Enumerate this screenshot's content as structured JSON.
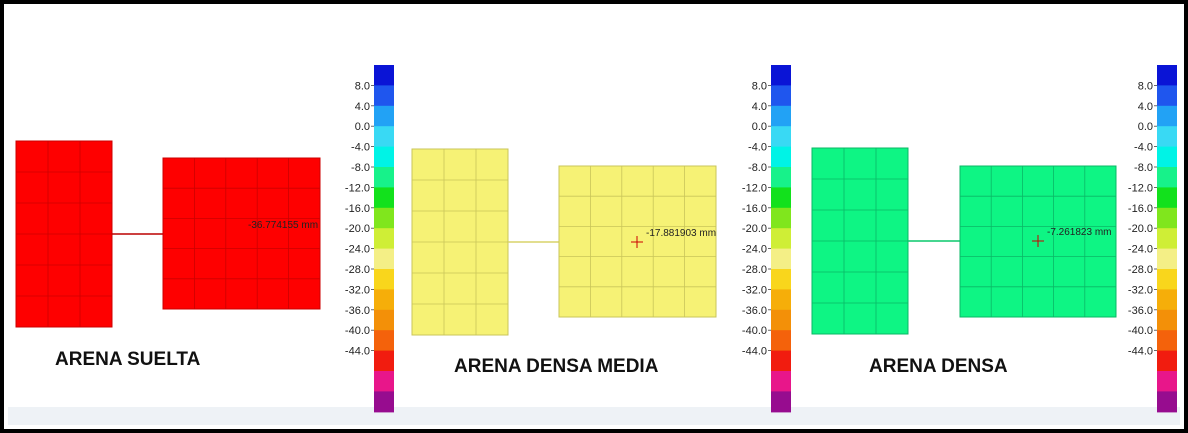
{
  "colorbar": {
    "ticks": [
      "8.0",
      "4.0",
      "0.0",
      "-4.0",
      "-8.0",
      "-12.0",
      "-16.0",
      "-20.0",
      "-24.0",
      "-28.0",
      "-32.0",
      "-36.0",
      "-40.0",
      "-44.0"
    ],
    "colors": [
      "#0a14d6",
      "#1f56ee",
      "#22a2f5",
      "#39d9f4",
      "#00f3e6",
      "#17f28a",
      "#12e11c",
      "#80e61d",
      "#cfee36",
      "#f4ef86",
      "#f9d61c",
      "#f6ae09",
      "#f39008",
      "#f4620b",
      "#f11c0f",
      "#e8168a",
      "#970c8f"
    ]
  },
  "panels": [
    {
      "title": "ARENA SUELTA",
      "displacement": "-36.774155 mm",
      "fill": "#fe0000",
      "grid_line": "#cc0000",
      "connector": "#bb0000"
    },
    {
      "title": "ARENA DENSA MEDIA",
      "displacement": "-17.881903 mm",
      "fill": "#f6f275",
      "grid_line": "#c9c55a",
      "connector": "#d9d46a"
    },
    {
      "title": "ARENA DENSA",
      "displacement": "-7.261823 mm",
      "fill": "#0ef584",
      "grid_line": "#0ab866",
      "connector": "#08c96c"
    }
  ]
}
